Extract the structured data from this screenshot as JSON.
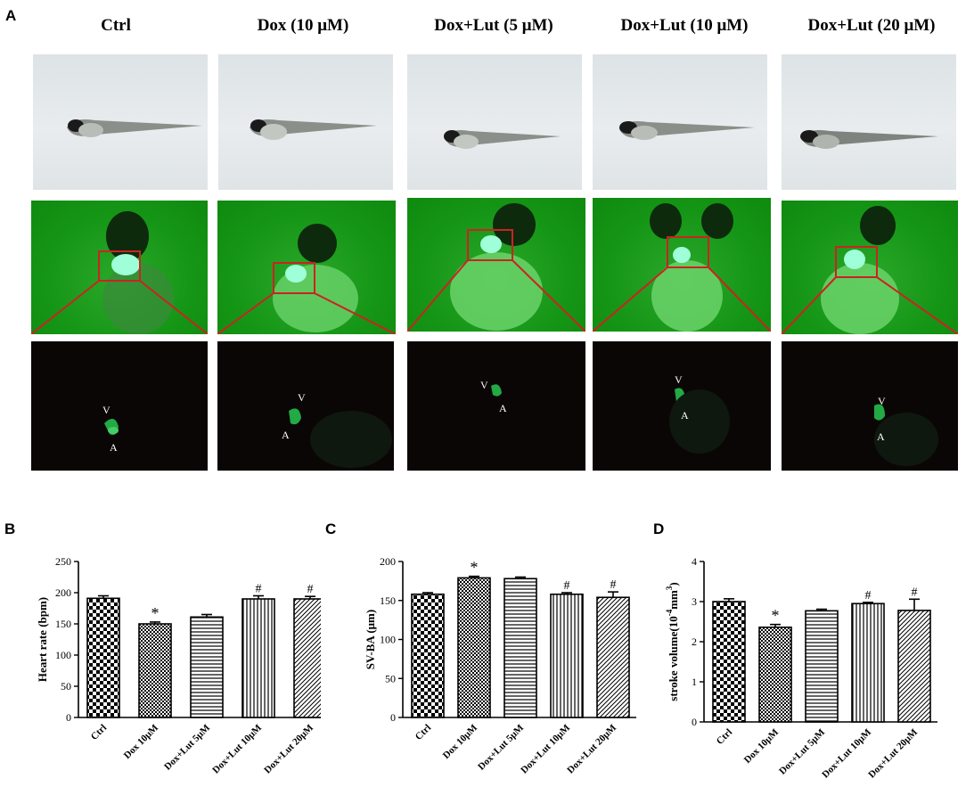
{
  "panel_a": {
    "letter": "A",
    "columns": [
      {
        "label": "Ctrl",
        "marks": [
          "V",
          "A"
        ]
      },
      {
        "label": "Dox (10 μM)",
        "marks": [
          "V",
          "A"
        ]
      },
      {
        "label": "Dox+Lut (5 μM)",
        "marks": [
          "V",
          "A"
        ]
      },
      {
        "label": "Dox+Lut (10 μM)",
        "marks": [
          "V",
          "A"
        ]
      },
      {
        "label": "Dox+Lut (20 μM)",
        "marks": [
          "V",
          "A"
        ]
      }
    ]
  },
  "chart_data": [
    {
      "panel": "B",
      "type": "bar",
      "ylabel": "Heart rate (bpm)",
      "ylim": [
        0,
        250
      ],
      "yticks": [
        0,
        50,
        100,
        150,
        200,
        250
      ],
      "categories": [
        "Ctrl",
        "Dox 10μM",
        "Dox+Lut 5μM",
        "Dox+Lut 10μM",
        "Dox+Lut 20μM"
      ],
      "values": [
        191,
        150,
        161,
        190,
        190
      ],
      "errors": [
        4,
        3,
        4,
        5,
        4
      ],
      "annotations": [
        "",
        "*",
        "",
        "#",
        "#"
      ],
      "patterns": [
        "check",
        "checkfine",
        "hlines",
        "vlines",
        "diag"
      ]
    },
    {
      "panel": "C",
      "type": "bar",
      "ylabel": "SV-BA (μm)",
      "ylim": [
        0,
        200
      ],
      "yticks": [
        0,
        50,
        100,
        150,
        200
      ],
      "categories": [
        "Ctrl",
        "Dox 10μM",
        "Dox+Lut 5μM",
        "Dox+Lut 10μM",
        "Dox+Lut 20μM"
      ],
      "values": [
        158,
        179,
        178,
        158,
        154
      ],
      "errors": [
        2,
        2,
        2,
        2,
        7
      ],
      "annotations": [
        "",
        "*",
        "",
        "#",
        "#"
      ],
      "patterns": [
        "check",
        "checkfine",
        "hlines",
        "vlines",
        "diag"
      ]
    },
    {
      "panel": "D",
      "type": "bar",
      "ylabel": "stroke volume(10",
      "ylabel_exp": "-4",
      "ylabel_tail": "mm",
      "ylabel_exp2": "3",
      "ylabel_close": ")",
      "ylim": [
        0,
        4
      ],
      "yticks": [
        0,
        1,
        2,
        3,
        4
      ],
      "categories": [
        "Ctrl",
        "Dox 10μM",
        "Dox+Lut 5μM",
        "Dox+Lut 10μM",
        "Dox+Lut 20μM"
      ],
      "values": [
        3.0,
        2.36,
        2.77,
        2.95,
        2.78
      ],
      "errors": [
        0.07,
        0.07,
        0.04,
        0.03,
        0.28
      ],
      "annotations": [
        "",
        "*",
        "",
        "#",
        "#"
      ],
      "patterns": [
        "check",
        "checkfine",
        "hlines",
        "vlines",
        "diag"
      ]
    }
  ]
}
